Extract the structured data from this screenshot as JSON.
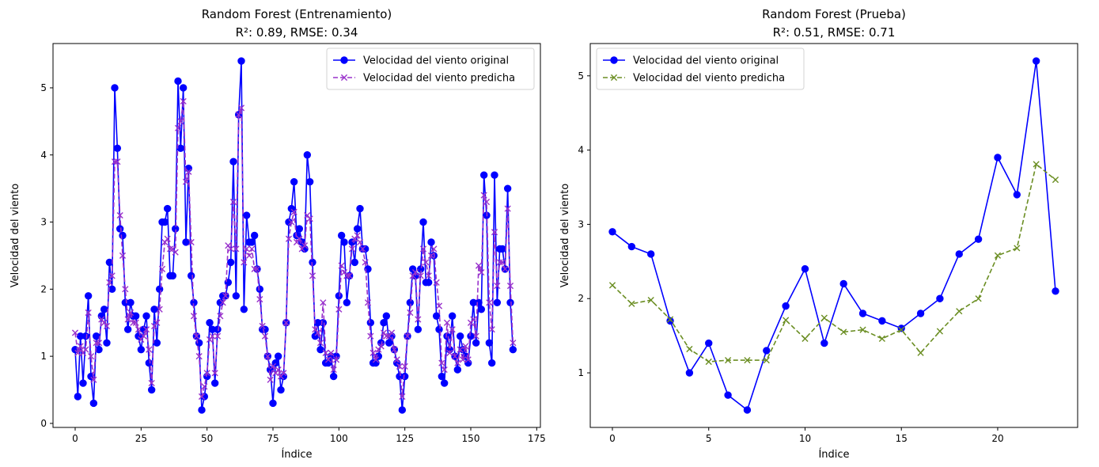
{
  "chart_data": [
    {
      "type": "line",
      "title_line1": "Random Forest (Entrenamiento)",
      "title_line2": "R²: 0.89, RMSE: 0.34",
      "xlabel": "Índice",
      "ylabel": "Velocidad del viento",
      "xlim": [
        -8.4,
        176.4
      ],
      "ylim": [
        -0.06,
        5.66
      ],
      "xticks": [
        0,
        25,
        50,
        75,
        100,
        125,
        150,
        175
      ],
      "yticks": [
        0,
        1,
        2,
        3,
        4,
        5
      ],
      "legend_position": "upper-right",
      "series": [
        {
          "name": "Velocidad del viento original",
          "color": "#0000ff",
          "style": "solid",
          "marker": "circle",
          "values": [
            1.1,
            0.4,
            1.3,
            0.6,
            1.3,
            1.9,
            0.7,
            0.3,
            1.3,
            1.1,
            1.6,
            1.7,
            1.2,
            2.4,
            2.0,
            5.0,
            4.1,
            2.9,
            2.8,
            1.8,
            1.4,
            1.8,
            1.6,
            1.6,
            1.3,
            1.1,
            1.4,
            1.6,
            0.9,
            0.5,
            1.7,
            1.2,
            2.0,
            3.0,
            3.0,
            3.2,
            2.2,
            2.2,
            2.9,
            5.1,
            4.1,
            5.0,
            2.7,
            3.8,
            2.2,
            1.8,
            1.3,
            1.2,
            0.2,
            0.4,
            0.7,
            1.5,
            1.4,
            0.6,
            1.4,
            1.8,
            1.9,
            1.9,
            2.1,
            2.4,
            3.9,
            1.9,
            4.6,
            5.4,
            1.7,
            3.1,
            2.7,
            2.7,
            2.8,
            2.3,
            2.0,
            1.4,
            1.4,
            1.0,
            0.8,
            0.3,
            0.9,
            1.0,
            0.5,
            0.7,
            1.5,
            3.0,
            3.2,
            3.6,
            2.8,
            2.9,
            2.7,
            2.6,
            4.0,
            3.6,
            2.4,
            1.3,
            1.5,
            1.1,
            1.5,
            0.9,
            0.9,
            1.0,
            0.7,
            1.0,
            1.9,
            2.8,
            2.7,
            1.8,
            2.2,
            2.7,
            2.4,
            2.9,
            3.2,
            2.6,
            2.6,
            2.3,
            1.5,
            0.9,
            0.9,
            1.0,
            1.2,
            1.5,
            1.6,
            1.2,
            1.3,
            1.1,
            0.9,
            0.7,
            0.2,
            0.7,
            1.3,
            1.8,
            2.3,
            2.2,
            1.4,
            2.3,
            3.0,
            2.1,
            2.1,
            2.7,
            2.5,
            1.6,
            1.4,
            0.7,
            0.6,
            1.3,
            1.1,
            1.6,
            1.0,
            0.8,
            1.3,
            1.1,
            1.0,
            0.9,
            1.3,
            1.8,
            1.2,
            1.8,
            1.7,
            3.7,
            3.1,
            1.2,
            0.9,
            3.7,
            1.8,
            2.6,
            2.6,
            2.3,
            3.5,
            1.8,
            1.1
          ]
        },
        {
          "name": "Velocidad del viento predicha",
          "color": "#9932cc",
          "style": "dashed",
          "marker": "x",
          "values": [
            1.35,
            1.05,
            1.15,
            1.05,
            1.1,
            1.65,
            1.0,
            0.65,
            1.2,
            1.2,
            1.55,
            1.5,
            1.45,
            2.1,
            2.2,
            3.9,
            3.9,
            3.1,
            2.5,
            2.0,
            1.55,
            1.65,
            1.5,
            1.5,
            1.4,
            1.25,
            1.3,
            1.4,
            1.1,
            0.6,
            1.45,
            1.5,
            1.7,
            2.3,
            2.7,
            2.75,
            2.6,
            2.6,
            2.55,
            4.4,
            4.5,
            4.8,
            3.6,
            3.75,
            2.7,
            1.6,
            1.3,
            1.0,
            0.4,
            0.55,
            0.75,
            1.25,
            1.3,
            0.75,
            1.3,
            1.6,
            1.8,
            1.9,
            2.65,
            2.6,
            3.3,
            2.6,
            4.6,
            4.7,
            2.4,
            2.6,
            2.5,
            2.6,
            2.3,
            2.3,
            1.85,
            1.45,
            1.3,
            1.0,
            0.65,
            0.85,
            0.75,
            0.8,
            0.7,
            0.75,
            1.5,
            2.75,
            3.0,
            3.15,
            2.7,
            2.75,
            2.6,
            2.65,
            3.1,
            3.05,
            2.2,
            1.4,
            1.35,
            1.2,
            1.8,
            1.05,
            0.95,
            1.05,
            0.8,
            0.95,
            1.7,
            2.35,
            2.25,
            2.2,
            2.2,
            2.6,
            2.75,
            2.8,
            2.7,
            2.6,
            2.4,
            1.8,
            1.3,
            1.05,
            0.95,
            1.1,
            1.15,
            1.35,
            1.3,
            1.3,
            1.35,
            1.1,
            0.95,
            0.85,
            0.4,
            0.85,
            1.3,
            1.65,
            2.2,
            2.25,
            1.55,
            2.2,
            2.6,
            2.4,
            2.2,
            2.5,
            2.6,
            2.1,
            1.75,
            0.9,
            0.8,
            1.5,
            1.05,
            1.4,
            1.0,
            0.9,
            1.1,
            0.95,
            1.15,
            0.95,
            1.5,
            1.55,
            1.3,
            2.35,
            2.25,
            3.4,
            3.3,
            1.8,
            1.4,
            2.85,
            2.05,
            2.4,
            2.4,
            2.3,
            3.2,
            2.05,
            1.2
          ]
        }
      ]
    },
    {
      "type": "line",
      "title_line1": "Random Forest (Prueba)",
      "title_line2": "R²: 0.51, RMSE: 0.71",
      "xlabel": "Índice",
      "ylabel": "Velocidad del viento",
      "xlim": [
        -1.15,
        24.15
      ],
      "ylim": [
        0.265,
        5.435
      ],
      "xticks": [
        0,
        5,
        10,
        15,
        20
      ],
      "yticks": [
        1,
        2,
        3,
        4,
        5
      ],
      "legend_position": "upper-left",
      "series": [
        {
          "name": "Velocidad del viento original",
          "color": "#0000ff",
          "style": "solid",
          "marker": "circle",
          "values": [
            2.9,
            2.7,
            2.6,
            1.7,
            1.0,
            1.4,
            0.7,
            0.5,
            1.3,
            1.9,
            2.4,
            1.4,
            2.2,
            1.8,
            1.7,
            1.6,
            1.8,
            2.0,
            2.6,
            2.8,
            3.9,
            3.4,
            5.2,
            2.1
          ]
        },
        {
          "name": "Velocidad del viento predicha",
          "color": "#6b8e23",
          "style": "dashed",
          "marker": "x",
          "values": [
            2.18,
            1.93,
            1.98,
            1.72,
            1.32,
            1.15,
            1.17,
            1.17,
            1.17,
            1.71,
            1.46,
            1.74,
            1.55,
            1.58,
            1.46,
            1.58,
            1.27,
            1.56,
            1.83,
            2.0,
            2.58,
            2.68,
            3.81,
            3.6
          ]
        }
      ]
    }
  ]
}
